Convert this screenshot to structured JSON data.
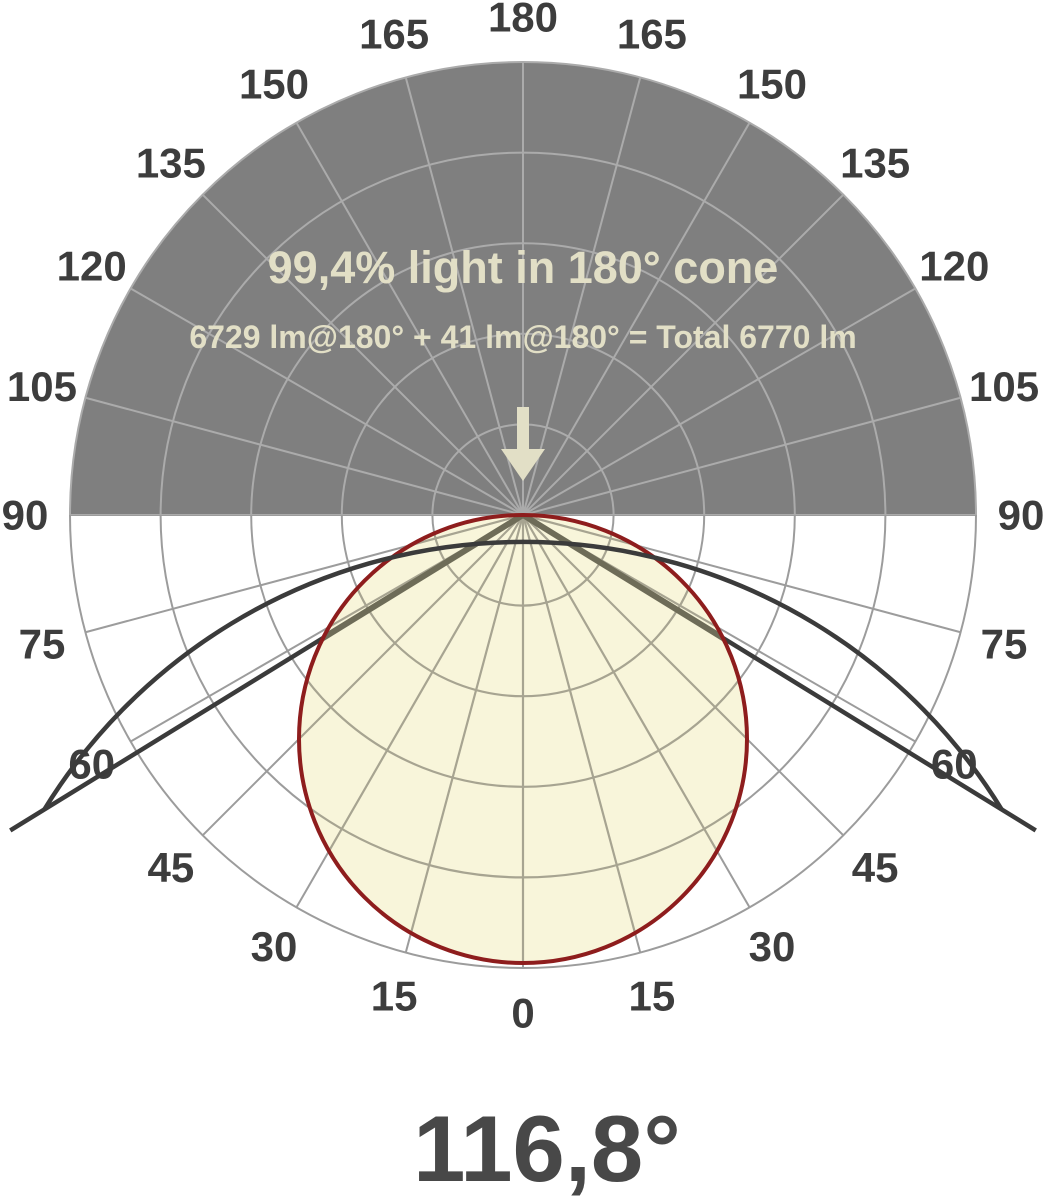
{
  "chart_data": {
    "type": "polar",
    "subtype": "photometric_intensity_distribution",
    "title": "99,4% light in 180° cone",
    "subtitle": "6729 lm@180° + 41 lm@180° = Total 6770 lm",
    "beam_angle_label": "116,8°",
    "beam_angle_deg": 116.8,
    "cone_percent": "99,4%",
    "cone_angle_deg": 180,
    "lumens": {
      "down": 6729,
      "up": 41,
      "total": 6770,
      "down_label": "6729 lm@180°",
      "up_label": "41 lm@180°",
      "total_label": "Total 6770 lm"
    },
    "angle_ticks_deg": [
      0,
      15,
      30,
      45,
      60,
      75,
      90,
      105,
      120,
      135,
      150,
      165,
      180
    ],
    "grid_step_deg": 15,
    "radial_rings": 5,
    "legend_position": "none",
    "distribution_curve": {
      "shape": "circle through origin (lambertian, I = I0 * cos(theta))",
      "max_at_deg": 0,
      "relative_intensity": {
        "angles_deg": [
          0,
          15,
          30,
          45,
          60,
          75,
          90
        ],
        "values": [
          1.0,
          0.97,
          0.87,
          0.71,
          0.5,
          0.26,
          0.0
        ]
      }
    },
    "icons": {
      "nadir_arrow": "down-arrow"
    },
    "colors": {
      "background": "#ffffff",
      "upper_hemisphere_fill": "#7f7f7f",
      "grid_on_gray": "#ababab",
      "grid_on_white": "#9c9c9c",
      "grid_inside_lobe": "#a7a491",
      "lobe_fill": "#f8f5da",
      "lobe_stroke": "#8e1d1d",
      "beam_line_dark": "#3b3b3b",
      "beam_line_inside_lobe": "#6e6c58",
      "cream_text": "#e2dfc6",
      "tick_text": "#3d3d3d",
      "beam_angle_text": "#484848"
    }
  }
}
